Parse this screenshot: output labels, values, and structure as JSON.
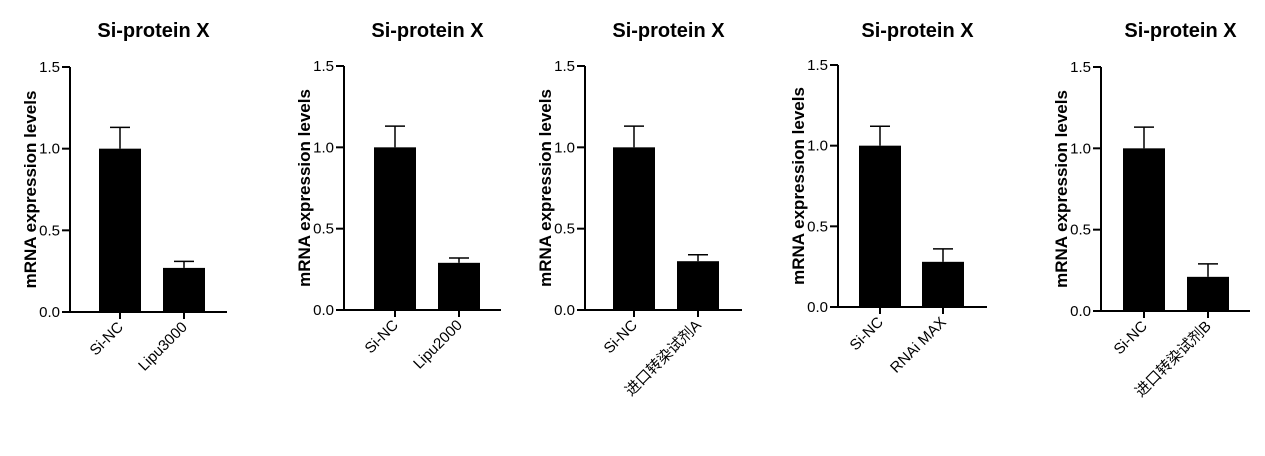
{
  "chart_data": [
    {
      "type": "bar",
      "title": "Si-protein X",
      "ylabel": "mRNA expression levels",
      "ylim": [
        0,
        1.5
      ],
      "yticks": [
        "0.0",
        "0.5",
        "1.0",
        "1.5"
      ],
      "categories": [
        "Si-NC",
        "Lipu3000"
      ],
      "values": [
        1.0,
        0.27
      ],
      "errors": [
        0.13,
        0.04
      ]
    },
    {
      "type": "bar",
      "title": "Si-protein X",
      "ylabel": "mRNA expression levels",
      "ylim": [
        0,
        1.5
      ],
      "yticks": [
        "0.0",
        "0.5",
        "1.0",
        "1.5"
      ],
      "categories": [
        "Si-NC",
        "Lipu2000"
      ],
      "values": [
        1.0,
        0.29
      ],
      "errors": [
        0.13,
        0.03
      ]
    },
    {
      "type": "bar",
      "title": "Si-protein X",
      "ylabel": "mRNA expression levels",
      "ylim": [
        0,
        1.5
      ],
      "yticks": [
        "0.0",
        "0.5",
        "1.0",
        "1.5"
      ],
      "categories": [
        "Si-NC",
        "进口转染试剂A"
      ],
      "values": [
        1.0,
        0.3
      ],
      "errors": [
        0.13,
        0.04
      ]
    },
    {
      "type": "bar",
      "title": "Si-protein X",
      "ylabel": "mRNA expression levels",
      "ylim": [
        0,
        1.5
      ],
      "yticks": [
        "0.0",
        "0.5",
        "1.0",
        "1.5"
      ],
      "categories": [
        "Si-NC",
        "RNAi MAX"
      ],
      "values": [
        1.0,
        0.28
      ],
      "errors": [
        0.12,
        0.08
      ]
    },
    {
      "type": "bar",
      "title": "Si-protein X",
      "ylabel": "mRNA expression levels",
      "ylim": [
        0,
        1.5
      ],
      "yticks": [
        "0.0",
        "0.5",
        "1.0",
        "1.5"
      ],
      "categories": [
        "Si-NC",
        "进口转染试剂B"
      ],
      "values": [
        1.0,
        0.21
      ],
      "errors": [
        0.13,
        0.08
      ]
    }
  ]
}
